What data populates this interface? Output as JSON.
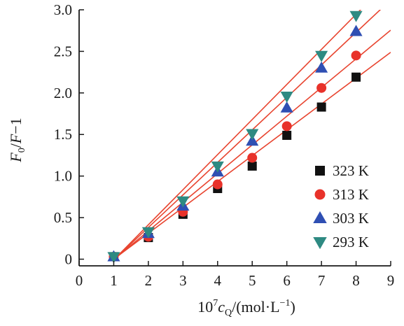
{
  "chart_data": {
    "type": "scatter",
    "xlabel": {
      "prefix": "10",
      "sup": "7",
      "var": "c",
      "sub": "Q",
      "rest": "/(mol·L",
      "sup2": "−1",
      "close": ")"
    },
    "ylabel": {
      "a": "F",
      "sub": "0",
      "b": "/",
      "c": "F",
      "d": "−1"
    },
    "xlim": [
      0,
      9
    ],
    "ylim": [
      -0.08,
      3.0
    ],
    "x_ticks": [
      0,
      1,
      2,
      3,
      4,
      5,
      6,
      7,
      8,
      9
    ],
    "x_tick_labels": [
      "0",
      "1",
      "2",
      "3",
      "4",
      "5",
      "6",
      "7",
      "8",
      "9"
    ],
    "y_ticks": [
      0,
      0.5,
      1.0,
      1.5,
      2.0,
      2.5,
      3.0
    ],
    "y_tick_labels": [
      "0",
      "0.5",
      "1.0",
      "1.5",
      "2.0",
      "2.5",
      "3.0"
    ],
    "legend_position": "lower-right",
    "fit_line_color": "#e8442f",
    "x": [
      1,
      2,
      3,
      4,
      5,
      6,
      7,
      8
    ],
    "series": [
      {
        "name": "323 K",
        "marker": "square",
        "color": "#111111",
        "values": [
          0.03,
          0.26,
          0.54,
          0.85,
          1.12,
          1.49,
          1.83,
          2.19
        ],
        "fit": {
          "slope": 0.311,
          "intercept": -0.31
        }
      },
      {
        "name": "313 K",
        "marker": "circle",
        "color": "#e8322a",
        "values": [
          0.03,
          0.27,
          0.57,
          0.9,
          1.22,
          1.6,
          2.06,
          2.45
        ],
        "fit": {
          "slope": 0.345,
          "intercept": -0.35
        }
      },
      {
        "name": "303 K",
        "marker": "triangle-up",
        "color": "#2f4fb3",
        "values": [
          0.03,
          0.31,
          0.64,
          1.05,
          1.42,
          1.82,
          2.3,
          2.74
        ],
        "fit": {
          "slope": 0.391,
          "intercept": -0.4
        }
      },
      {
        "name": "293 K",
        "marker": "triangle-down",
        "color": "#2e8a82",
        "values": [
          0.03,
          0.33,
          0.7,
          1.12,
          1.51,
          1.96,
          2.45,
          2.93
        ],
        "fit": {
          "slope": 0.422,
          "intercept": -0.43
        }
      }
    ]
  }
}
